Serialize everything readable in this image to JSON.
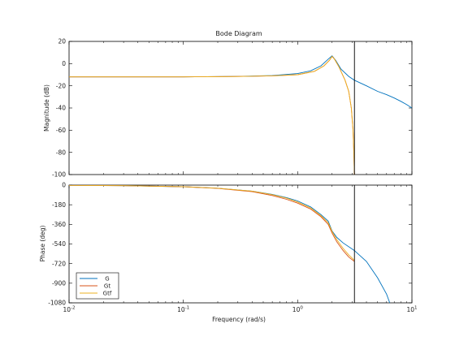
{
  "chart_data": {
    "type": "line",
    "title": "Bode Diagram",
    "xlabel": "Frequency  (rad/s)",
    "xscale": "log",
    "xlim": [
      0.01,
      10
    ],
    "x_ticks": [
      {
        "value": 0.01,
        "base": "10",
        "exp": "-2"
      },
      {
        "value": 0.1,
        "base": "10",
        "exp": "-1"
      },
      {
        "value": 1,
        "base": "10",
        "exp": "0"
      },
      {
        "value": 10,
        "base": "10",
        "exp": "1"
      }
    ],
    "vertical_marker_x": 3.14,
    "legend_position": "bottom-left",
    "colors": {
      "G": "#0072bd",
      "Gt": "#d95319",
      "Gtf": "#edb120",
      "axes": "#000000",
      "marker": "#000000"
    },
    "panels": [
      {
        "name": "magnitude",
        "ylabel": "Magnitude (dB)",
        "ylim": [
          -100,
          20
        ],
        "yticks": [
          20,
          0,
          -20,
          -40,
          -60,
          -80,
          -100
        ],
        "series": [
          {
            "name": "G",
            "color": "#0072bd",
            "points": [
              [
                0.01,
                -12
              ],
              [
                0.1,
                -12
              ],
              [
                0.3,
                -11.5
              ],
              [
                0.6,
                -10.8
              ],
              [
                1.0,
                -9
              ],
              [
                1.3,
                -6.5
              ],
              [
                1.6,
                -2
              ],
              [
                1.85,
                4
              ],
              [
                2.0,
                7
              ],
              [
                2.15,
                3
              ],
              [
                2.4,
                -5
              ],
              [
                2.8,
                -11.5
              ],
              [
                3.14,
                -15
              ],
              [
                4,
                -20
              ],
              [
                5,
                -25
              ],
              [
                6,
                -28
              ],
              [
                7,
                -31
              ],
              [
                8,
                -34
              ],
              [
                9,
                -37
              ],
              [
                10,
                -40
              ]
            ]
          },
          {
            "name": "Gt",
            "color": "#d95319",
            "points": [
              [
                0.01,
                -12
              ],
              [
                0.1,
                -12
              ],
              [
                0.3,
                -11.6
              ],
              [
                0.6,
                -11
              ],
              [
                1.0,
                -10
              ],
              [
                1.4,
                -7
              ],
              [
                1.7,
                -2
              ],
              [
                1.9,
                3
              ],
              [
                2.0,
                6.5
              ],
              [
                2.1,
                4
              ],
              [
                2.3,
                -3
              ],
              [
                2.6,
                -15
              ],
              [
                2.8,
                -25
              ],
              [
                2.95,
                -40
              ],
              [
                3.05,
                -60
              ],
              [
                3.1,
                -80
              ],
              [
                3.14,
                -100
              ]
            ]
          },
          {
            "name": "Gtf",
            "color": "#edb120",
            "points": [
              [
                0.01,
                -12
              ],
              [
                0.1,
                -12
              ],
              [
                0.3,
                -11.6
              ],
              [
                0.6,
                -11
              ],
              [
                1.0,
                -10
              ],
              [
                1.4,
                -7
              ],
              [
                1.7,
                -2
              ],
              [
                1.9,
                3
              ],
              [
                2.0,
                6.5
              ],
              [
                2.1,
                4
              ],
              [
                2.3,
                -3
              ],
              [
                2.6,
                -15
              ],
              [
                2.8,
                -25
              ],
              [
                2.95,
                -40
              ],
              [
                3.05,
                -60
              ],
              [
                3.1,
                -80
              ],
              [
                3.14,
                -100
              ]
            ]
          }
        ]
      },
      {
        "name": "phase",
        "ylabel": "Phase (deg)",
        "ylim": [
          -1080,
          0
        ],
        "yticks": [
          0,
          -180,
          -360,
          -540,
          -720,
          -900,
          -1080
        ],
        "series": [
          {
            "name": "G",
            "color": "#0072bd",
            "points": [
              [
                0.01,
                -2
              ],
              [
                0.03,
                -5
              ],
              [
                0.1,
                -15
              ],
              [
                0.2,
                -28
              ],
              [
                0.4,
                -55
              ],
              [
                0.6,
                -85
              ],
              [
                0.8,
                -115
              ],
              [
                1.0,
                -145
              ],
              [
                1.3,
                -200
              ],
              [
                1.6,
                -270
              ],
              [
                1.85,
                -330
              ],
              [
                2.0,
                -420
              ],
              [
                2.2,
                -480
              ],
              [
                2.5,
                -530
              ],
              [
                3.14,
                -600
              ],
              [
                4,
                -700
              ],
              [
                5,
                -850
              ],
              [
                6,
                -1000
              ],
              [
                6.4,
                -1080
              ]
            ]
          },
          {
            "name": "Gt",
            "color": "#d95319",
            "points": [
              [
                0.01,
                -2
              ],
              [
                0.03,
                -5
              ],
              [
                0.1,
                -15
              ],
              [
                0.2,
                -30
              ],
              [
                0.4,
                -60
              ],
              [
                0.6,
                -95
              ],
              [
                0.8,
                -130
              ],
              [
                1.0,
                -165
              ],
              [
                1.3,
                -220
              ],
              [
                1.6,
                -290
              ],
              [
                1.85,
                -360
              ],
              [
                2.0,
                -440
              ],
              [
                2.2,
                -520
              ],
              [
                2.5,
                -600
              ],
              [
                2.8,
                -660
              ],
              [
                3.14,
                -700
              ]
            ]
          },
          {
            "name": "Gtf",
            "color": "#edb120",
            "points": [
              [
                0.01,
                -2
              ],
              [
                0.03,
                -5
              ],
              [
                0.1,
                -14
              ],
              [
                0.2,
                -28
              ],
              [
                0.4,
                -55
              ],
              [
                0.6,
                -88
              ],
              [
                0.8,
                -120
              ],
              [
                1.0,
                -155
              ],
              [
                1.3,
                -210
              ],
              [
                1.6,
                -280
              ],
              [
                1.85,
                -345
              ],
              [
                2.0,
                -425
              ],
              [
                2.2,
                -500
              ],
              [
                2.5,
                -580
              ],
              [
                2.8,
                -640
              ],
              [
                3.14,
                -690
              ]
            ]
          }
        ]
      }
    ]
  }
}
